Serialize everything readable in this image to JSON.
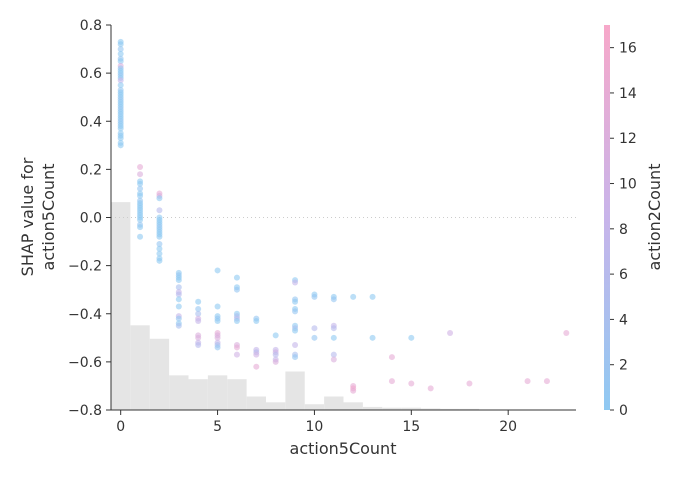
{
  "chart_data": {
    "type": "scatter",
    "xlabel": "action5Count",
    "ylabel_lines": [
      "SHAP value for",
      "action5Count"
    ],
    "colorbar_label": "action2Count",
    "xlim": [
      -0.5,
      23.5
    ],
    "ylim": [
      -0.8,
      0.8
    ],
    "x_ticks": [
      0,
      5,
      10,
      15,
      20
    ],
    "y_ticks": [
      -0.8,
      -0.6,
      -0.4,
      -0.2,
      0.0,
      0.2,
      0.4,
      0.6,
      0.8
    ],
    "y_tick_labels": [
      "−0.8",
      "−0.6",
      "−0.4",
      "−0.2",
      "0.0",
      "0.2",
      "0.4",
      "0.6",
      "0.8"
    ],
    "colorbar_ticks": [
      0,
      2,
      4,
      6,
      8,
      10,
      12,
      14,
      16
    ],
    "colorbar_range": [
      0,
      17
    ],
    "colors": {
      "low": "#8fc9f2",
      "mid": "#c8b4ea",
      "high": "#f7a8c9",
      "dense": "#1f4fe0",
      "hist": "#e5e5e5"
    },
    "zero_line": true,
    "histogram": [
      {
        "x0": -0.5,
        "x1": 0.5,
        "v": 0.54
      },
      {
        "x0": 0.5,
        "x1": 1.5,
        "v": 0.22
      },
      {
        "x0": 1.5,
        "x1": 2.5,
        "v": 0.185
      },
      {
        "x0": 2.5,
        "x1": 3.5,
        "v": 0.09
      },
      {
        "x0": 3.5,
        "x1": 4.5,
        "v": 0.08
      },
      {
        "x0": 4.5,
        "x1": 5.5,
        "v": 0.09
      },
      {
        "x0": 5.5,
        "x1": 6.5,
        "v": 0.08
      },
      {
        "x0": 6.5,
        "x1": 7.5,
        "v": 0.035
      },
      {
        "x0": 7.5,
        "x1": 8.5,
        "v": 0.02
      },
      {
        "x0": 8.5,
        "x1": 9.5,
        "v": 0.1
      },
      {
        "x0": 9.5,
        "x1": 10.5,
        "v": 0.015
      },
      {
        "x0": 10.5,
        "x1": 11.5,
        "v": 0.035
      },
      {
        "x0": 11.5,
        "x1": 12.5,
        "v": 0.02
      },
      {
        "x0": 12.5,
        "x1": 13.5,
        "v": 0.008
      },
      {
        "x0": 13.5,
        "x1": 14.5,
        "v": 0.006
      },
      {
        "x0": 14.5,
        "x1": 15.5,
        "v": 0.006
      },
      {
        "x0": 15.5,
        "x1": 16.5,
        "v": 0.004
      },
      {
        "x0": 16.5,
        "x1": 17.5,
        "v": 0.003
      },
      {
        "x0": 17.5,
        "x1": 18.5,
        "v": 0.003
      }
    ],
    "points": [
      {
        "x": 0,
        "y": 0.73,
        "c": 0
      },
      {
        "x": 0,
        "y": 0.72,
        "c": 0
      },
      {
        "x": 0,
        "y": 0.7,
        "c": 1
      },
      {
        "x": 0,
        "y": 0.68,
        "c": 0
      },
      {
        "x": 0,
        "y": 0.66,
        "c": 1
      },
      {
        "x": 0,
        "y": 0.65,
        "c": 0
      },
      {
        "x": 0,
        "y": 0.63,
        "c": 12
      },
      {
        "x": 0,
        "y": 0.62,
        "c": 1
      },
      {
        "x": 0,
        "y": 0.61,
        "c": 0
      },
      {
        "x": 0,
        "y": 0.6,
        "c": 0
      },
      {
        "x": 0,
        "y": 0.59,
        "c": 1
      },
      {
        "x": 0,
        "y": 0.58,
        "c": 0
      },
      {
        "x": 0,
        "y": 0.57,
        "c": 8
      },
      {
        "x": 0,
        "y": 0.55,
        "c": 0
      },
      {
        "x": 0,
        "y": 0.53,
        "c": 1
      },
      {
        "x": 0,
        "y": 0.52,
        "c": 0
      },
      {
        "x": 0,
        "y": 0.51,
        "c": 0
      },
      {
        "x": 0,
        "y": 0.5,
        "c": 0
      },
      {
        "x": 0,
        "y": 0.49,
        "c": 1
      },
      {
        "x": 0,
        "y": 0.48,
        "c": 0
      },
      {
        "x": 0,
        "y": 0.47,
        "c": 0
      },
      {
        "x": 0,
        "y": 0.46,
        "c": 0
      },
      {
        "x": 0,
        "y": 0.45,
        "c": 1
      },
      {
        "x": 0,
        "y": 0.44,
        "c": 0
      },
      {
        "x": 0,
        "y": 0.43,
        "c": 0
      },
      {
        "x": 0,
        "y": 0.42,
        "c": 0
      },
      {
        "x": 0,
        "y": 0.41,
        "c": 0
      },
      {
        "x": 0,
        "y": 0.4,
        "c": 1
      },
      {
        "x": 0,
        "y": 0.39,
        "c": 0
      },
      {
        "x": 0,
        "y": 0.38,
        "c": 0
      },
      {
        "x": 0,
        "y": 0.37,
        "c": 0
      },
      {
        "x": 0,
        "y": 0.35,
        "c": 0
      },
      {
        "x": 0,
        "y": 0.34,
        "c": 0
      },
      {
        "x": 0,
        "y": 0.33,
        "c": 0
      },
      {
        "x": 0,
        "y": 0.31,
        "c": 0
      },
      {
        "x": 0,
        "y": 0.3,
        "c": 0
      },
      {
        "x": 1,
        "y": 0.21,
        "c": 14
      },
      {
        "x": 1,
        "y": 0.18,
        "c": 12
      },
      {
        "x": 1,
        "y": 0.15,
        "c": 0
      },
      {
        "x": 1,
        "y": 0.14,
        "c": 0
      },
      {
        "x": 1,
        "y": 0.12,
        "c": 1
      },
      {
        "x": 1,
        "y": 0.1,
        "c": 0
      },
      {
        "x": 1,
        "y": 0.09,
        "c": 0
      },
      {
        "x": 1,
        "y": 0.07,
        "c": 1
      },
      {
        "x": 1,
        "y": 0.06,
        "c": 0
      },
      {
        "x": 1,
        "y": 0.05,
        "c": 0
      },
      {
        "x": 1,
        "y": 0.04,
        "c": 0
      },
      {
        "x": 1,
        "y": 0.03,
        "c": 0
      },
      {
        "x": 1,
        "y": 0.02,
        "c": 0
      },
      {
        "x": 1,
        "y": 0.01,
        "c": 0
      },
      {
        "x": 1,
        "y": 0.0,
        "c": 0
      },
      {
        "x": 1,
        "y": -0.01,
        "c": 0
      },
      {
        "x": 1,
        "y": -0.03,
        "c": 1
      },
      {
        "x": 1,
        "y": -0.04,
        "c": 0
      },
      {
        "x": 1,
        "y": -0.08,
        "c": 0
      },
      {
        "x": 2,
        "y": 0.1,
        "c": 14
      },
      {
        "x": 2,
        "y": 0.09,
        "c": 12
      },
      {
        "x": 2,
        "y": 0.08,
        "c": 0
      },
      {
        "x": 2,
        "y": 0.03,
        "c": 6
      },
      {
        "x": 2,
        "y": 0.0,
        "c": 0
      },
      {
        "x": 2,
        "y": -0.01,
        "c": 0
      },
      {
        "x": 2,
        "y": -0.02,
        "c": 0
      },
      {
        "x": 2,
        "y": -0.03,
        "c": 0
      },
      {
        "x": 2,
        "y": -0.04,
        "c": 1
      },
      {
        "x": 2,
        "y": -0.05,
        "c": 0
      },
      {
        "x": 2,
        "y": -0.06,
        "c": 0
      },
      {
        "x": 2,
        "y": -0.07,
        "c": 0
      },
      {
        "x": 2,
        "y": -0.08,
        "c": 0
      },
      {
        "x": 2,
        "y": -0.11,
        "c": 1
      },
      {
        "x": 2,
        "y": -0.13,
        "c": 0
      },
      {
        "x": 2,
        "y": -0.15,
        "c": 0
      },
      {
        "x": 2,
        "y": -0.17,
        "c": 0
      },
      {
        "x": 2,
        "y": -0.18,
        "c": 0
      },
      {
        "x": 3,
        "y": -0.23,
        "c": 0
      },
      {
        "x": 3,
        "y": -0.24,
        "c": 1
      },
      {
        "x": 3,
        "y": -0.25,
        "c": 0
      },
      {
        "x": 3,
        "y": -0.26,
        "c": 0
      },
      {
        "x": 3,
        "y": -0.29,
        "c": 4
      },
      {
        "x": 3,
        "y": -0.31,
        "c": 8
      },
      {
        "x": 3,
        "y": -0.32,
        "c": 6
      },
      {
        "x": 3,
        "y": -0.34,
        "c": 0
      },
      {
        "x": 3,
        "y": -0.37,
        "c": 0
      },
      {
        "x": 3,
        "y": -0.41,
        "c": 8
      },
      {
        "x": 3,
        "y": -0.42,
        "c": 1
      },
      {
        "x": 3,
        "y": -0.44,
        "c": 0
      },
      {
        "x": 3,
        "y": -0.45,
        "c": 4
      },
      {
        "x": 4,
        "y": -0.35,
        "c": 0
      },
      {
        "x": 4,
        "y": -0.38,
        "c": 1
      },
      {
        "x": 4,
        "y": -0.4,
        "c": 4
      },
      {
        "x": 4,
        "y": -0.42,
        "c": 10
      },
      {
        "x": 4,
        "y": -0.43,
        "c": 8
      },
      {
        "x": 4,
        "y": -0.49,
        "c": 12
      },
      {
        "x": 4,
        "y": -0.5,
        "c": 12
      },
      {
        "x": 4,
        "y": -0.52,
        "c": 8
      },
      {
        "x": 4,
        "y": -0.53,
        "c": 6
      },
      {
        "x": 5,
        "y": -0.22,
        "c": 0
      },
      {
        "x": 5,
        "y": -0.37,
        "c": 0
      },
      {
        "x": 5,
        "y": -0.41,
        "c": 0
      },
      {
        "x": 5,
        "y": -0.42,
        "c": 1
      },
      {
        "x": 5,
        "y": -0.43,
        "c": 0
      },
      {
        "x": 5,
        "y": -0.48,
        "c": 14
      },
      {
        "x": 5,
        "y": -0.49,
        "c": 12
      },
      {
        "x": 5,
        "y": -0.5,
        "c": 12
      },
      {
        "x": 5,
        "y": -0.52,
        "c": 8
      },
      {
        "x": 5,
        "y": -0.53,
        "c": 4
      },
      {
        "x": 5,
        "y": -0.54,
        "c": 1
      },
      {
        "x": 6,
        "y": -0.25,
        "c": 0
      },
      {
        "x": 6,
        "y": -0.29,
        "c": 0
      },
      {
        "x": 6,
        "y": -0.3,
        "c": 1
      },
      {
        "x": 6,
        "y": -0.4,
        "c": 0
      },
      {
        "x": 6,
        "y": -0.41,
        "c": 4
      },
      {
        "x": 6,
        "y": -0.42,
        "c": 6
      },
      {
        "x": 6,
        "y": -0.43,
        "c": 0
      },
      {
        "x": 6,
        "y": -0.53,
        "c": 12
      },
      {
        "x": 6,
        "y": -0.54,
        "c": 14
      },
      {
        "x": 6,
        "y": -0.57,
        "c": 10
      },
      {
        "x": 7,
        "y": -0.42,
        "c": 1
      },
      {
        "x": 7,
        "y": -0.43,
        "c": 0
      },
      {
        "x": 7,
        "y": -0.55,
        "c": 8
      },
      {
        "x": 7,
        "y": -0.56,
        "c": 6
      },
      {
        "x": 7,
        "y": -0.57,
        "c": 10
      },
      {
        "x": 7,
        "y": -0.62,
        "c": 14
      },
      {
        "x": 8,
        "y": -0.49,
        "c": 0
      },
      {
        "x": 8,
        "y": -0.55,
        "c": 8
      },
      {
        "x": 8,
        "y": -0.56,
        "c": 10
      },
      {
        "x": 8,
        "y": -0.57,
        "c": 6
      },
      {
        "x": 8,
        "y": -0.59,
        "c": 8
      },
      {
        "x": 8,
        "y": -0.6,
        "c": 12
      },
      {
        "x": 9,
        "y": -0.26,
        "c": 0
      },
      {
        "x": 9,
        "y": -0.27,
        "c": 8
      },
      {
        "x": 9,
        "y": -0.34,
        "c": 1
      },
      {
        "x": 9,
        "y": -0.35,
        "c": 0
      },
      {
        "x": 9,
        "y": -0.38,
        "c": 0
      },
      {
        "x": 9,
        "y": -0.39,
        "c": 1
      },
      {
        "x": 9,
        "y": -0.45,
        "c": 0
      },
      {
        "x": 9,
        "y": -0.46,
        "c": 4
      },
      {
        "x": 9,
        "y": -0.47,
        "c": 0
      },
      {
        "x": 9,
        "y": -0.53,
        "c": 8
      },
      {
        "x": 9,
        "y": -0.57,
        "c": 4
      },
      {
        "x": 9,
        "y": -0.58,
        "c": 1
      },
      {
        "x": 10,
        "y": -0.32,
        "c": 0
      },
      {
        "x": 10,
        "y": -0.33,
        "c": 1
      },
      {
        "x": 10,
        "y": -0.46,
        "c": 6
      },
      {
        "x": 10,
        "y": -0.5,
        "c": 1
      },
      {
        "x": 11,
        "y": -0.33,
        "c": 0
      },
      {
        "x": 11,
        "y": -0.34,
        "c": 1
      },
      {
        "x": 11,
        "y": -0.45,
        "c": 8
      },
      {
        "x": 11,
        "y": -0.46,
        "c": 6
      },
      {
        "x": 11,
        "y": -0.5,
        "c": 0
      },
      {
        "x": 11,
        "y": -0.57,
        "c": 6
      },
      {
        "x": 11,
        "y": -0.59,
        "c": 12
      },
      {
        "x": 12,
        "y": -0.33,
        "c": 0
      },
      {
        "x": 12,
        "y": -0.7,
        "c": 14
      },
      {
        "x": 12,
        "y": -0.71,
        "c": 16
      },
      {
        "x": 12,
        "y": -0.72,
        "c": 14
      },
      {
        "x": 13,
        "y": -0.33,
        "c": 0
      },
      {
        "x": 13,
        "y": -0.5,
        "c": 0
      },
      {
        "x": 14,
        "y": -0.58,
        "c": 14
      },
      {
        "x": 14,
        "y": -0.68,
        "c": 14
      },
      {
        "x": 15,
        "y": -0.5,
        "c": 0
      },
      {
        "x": 15,
        "y": -0.69,
        "c": 14
      },
      {
        "x": 16,
        "y": -0.71,
        "c": 14
      },
      {
        "x": 17,
        "y": -0.48,
        "c": 10
      },
      {
        "x": 18,
        "y": -0.69,
        "c": 14
      },
      {
        "x": 21,
        "y": -0.68,
        "c": 14
      },
      {
        "x": 22,
        "y": -0.68,
        "c": 14
      },
      {
        "x": 23,
        "y": -0.48,
        "c": 14
      }
    ]
  }
}
